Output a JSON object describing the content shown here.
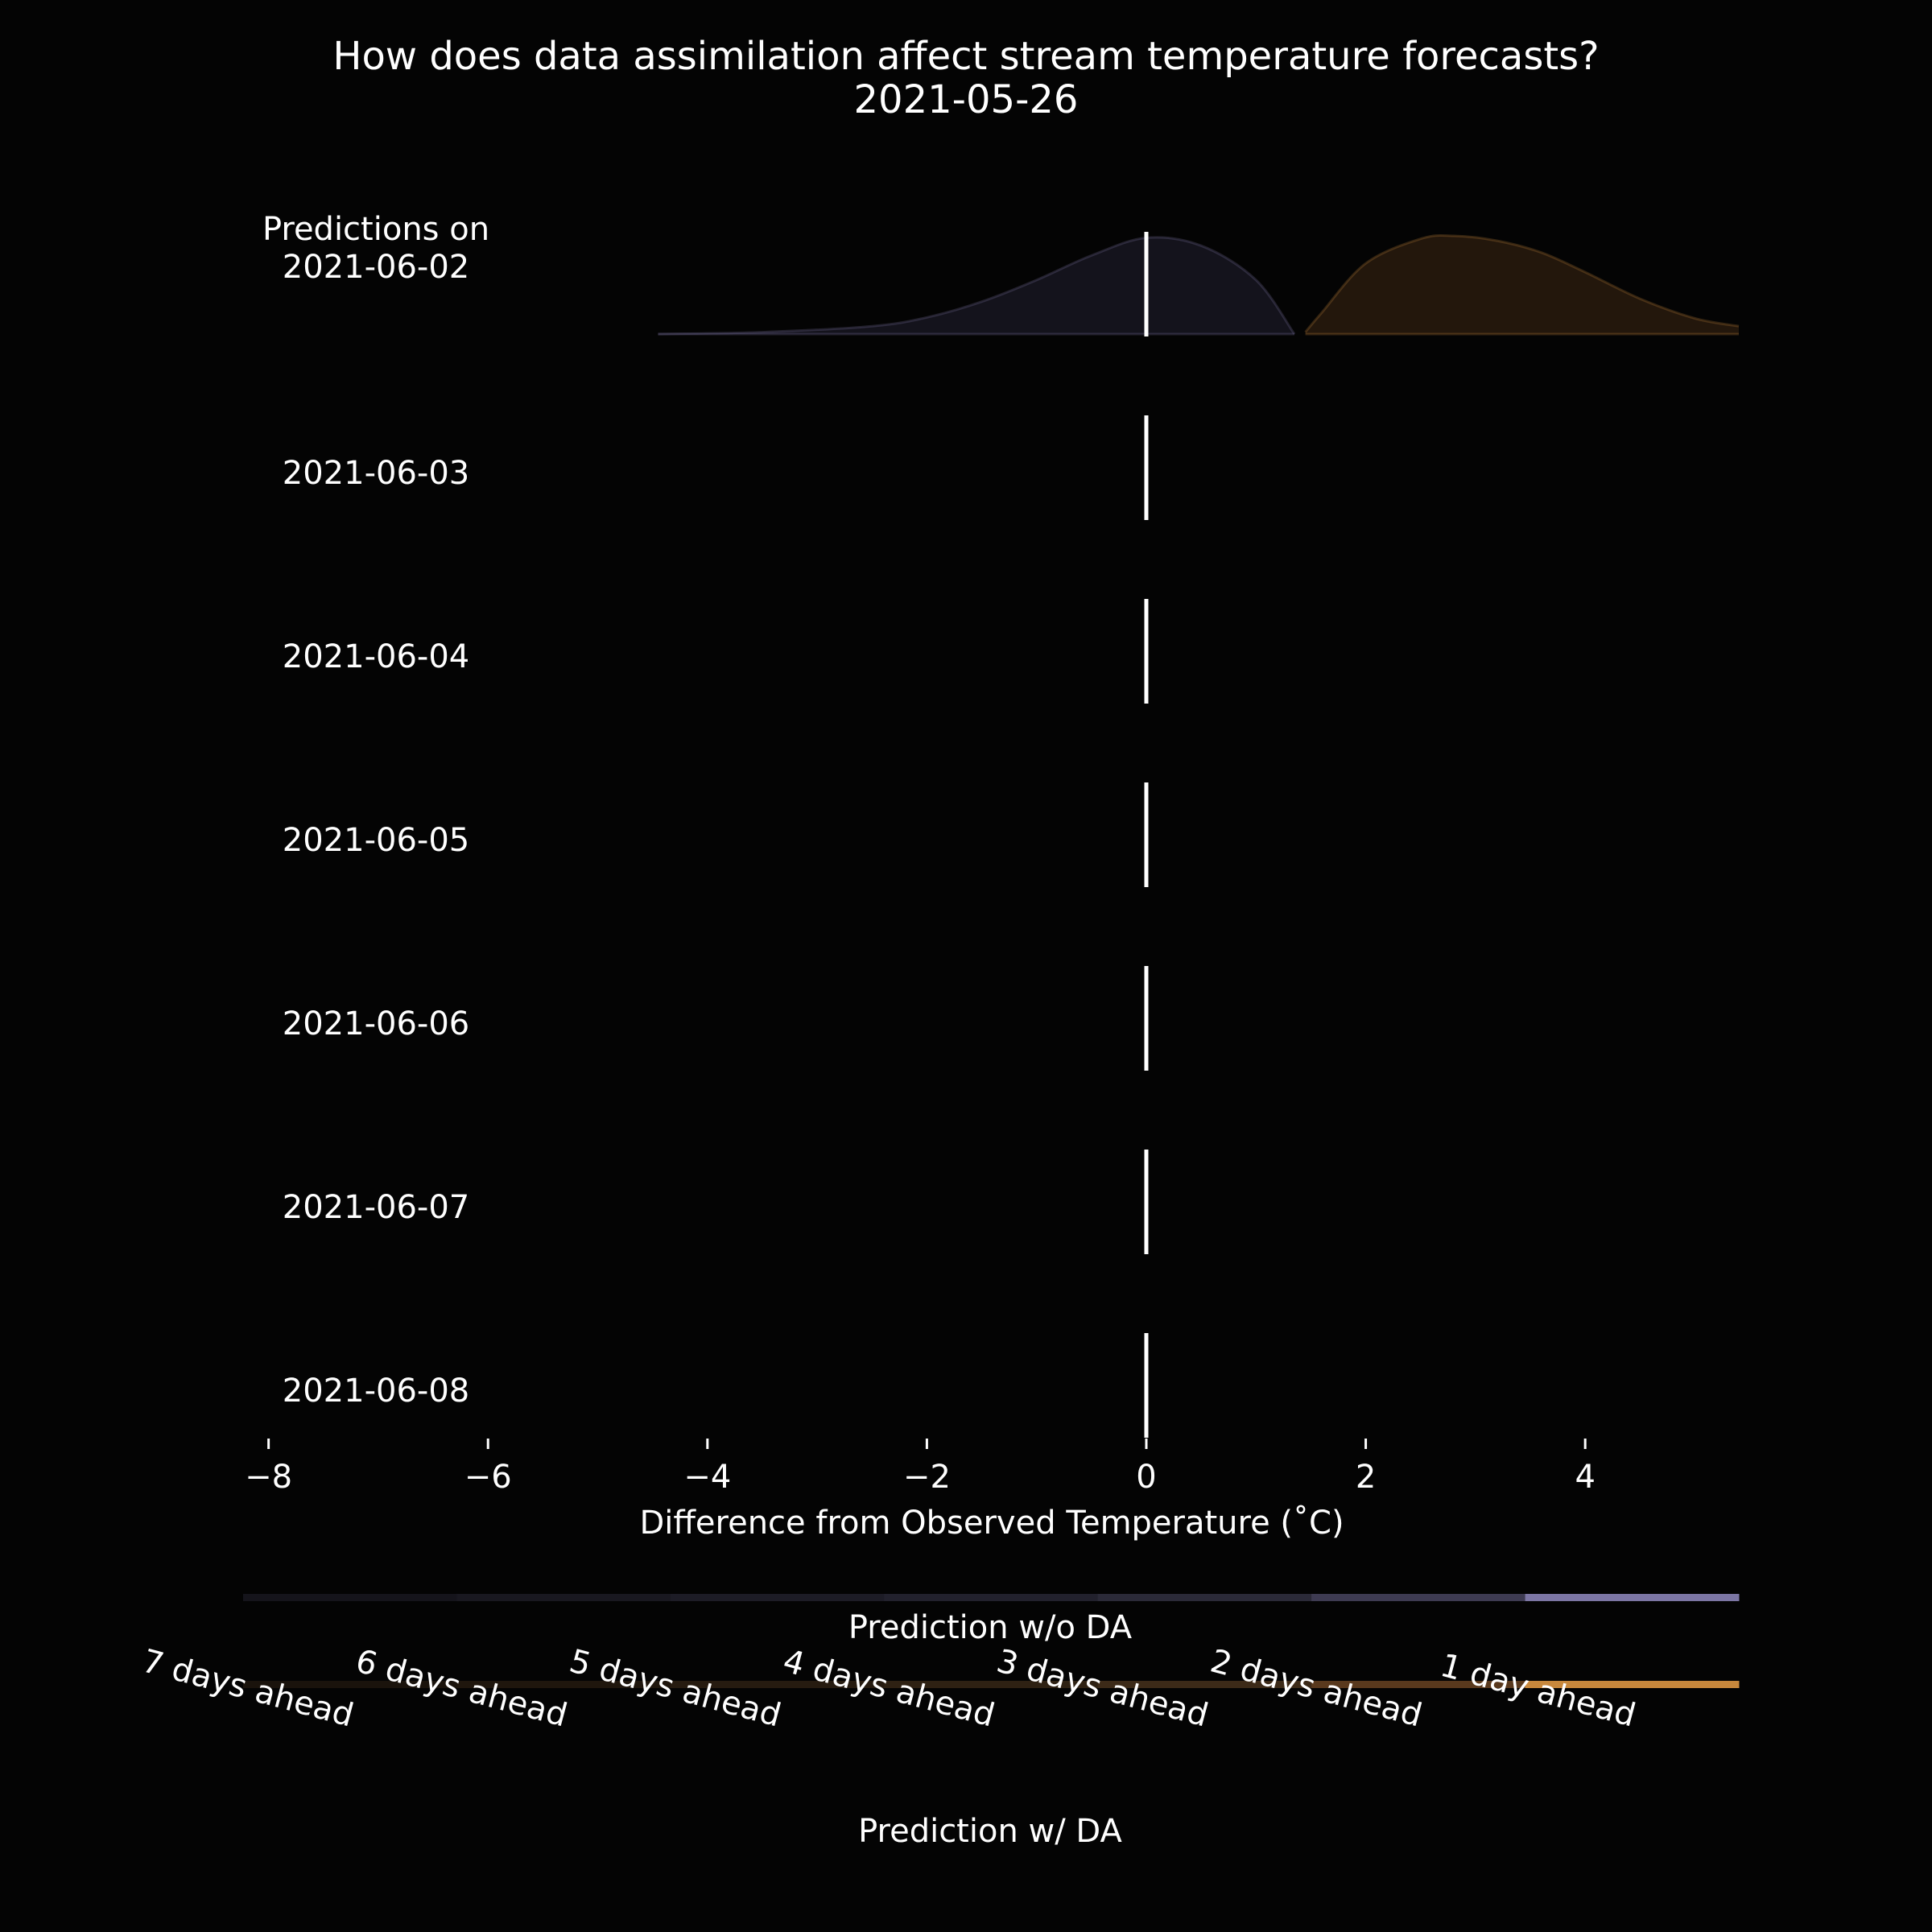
{
  "chart_data": {
    "type": "ridgeline",
    "title": "How does data assimilation affect stream temperature forecasts?",
    "subtitle": "2021-05-26",
    "xlabel": "Difference from Observed Temperature ($^\\circ$C)",
    "xlabel_display": "Difference from Observed Temperature (˚C)",
    "xlim": [
      -8.1,
      5.4
    ],
    "xticks": [
      -8,
      -6,
      -4,
      -2,
      0,
      2,
      4
    ],
    "xtick_labels": [
      "−8",
      "−6",
      "−4",
      "−2",
      "0",
      "2",
      "4"
    ],
    "reference_line_x": 0,
    "row_header": "Predictions on",
    "rows": [
      "2021-06-02",
      "2021-06-03",
      "2021-06-04",
      "2021-06-05",
      "2021-06-06",
      "2021-06-07",
      "2021-06-08"
    ],
    "series": [
      {
        "name": "Prediction w/o DA",
        "row": "2021-06-02",
        "color": "#8079a8",
        "fill_color": "#14131c",
        "x": [
          -4.45,
          -3.5,
          -2.5,
          -2.0,
          -1.5,
          -1.0,
          -0.5,
          0.0,
          0.5,
          1.0,
          1.35
        ],
        "density": [
          0.0,
          0.02,
          0.08,
          0.17,
          0.33,
          0.55,
          0.8,
          0.98,
          0.9,
          0.55,
          0.0
        ]
      },
      {
        "name": "Prediction w/ DA",
        "row": "2021-06-02",
        "color": "#c8883c",
        "fill_color": "#23170c",
        "x": [
          1.45,
          1.6,
          2.0,
          2.5,
          2.8,
          3.2,
          3.6,
          4.0,
          4.5,
          5.0,
          5.4
        ],
        "density": [
          0.02,
          0.22,
          0.72,
          0.97,
          1.0,
          0.95,
          0.83,
          0.63,
          0.36,
          0.16,
          0.08
        ]
      }
    ],
    "legend": {
      "horizons": [
        "7 days ahead",
        "6 days ahead",
        "5 days ahead",
        "4 days ahead",
        "3 days ahead",
        "2 days ahead",
        "1 day ahead"
      ],
      "no_da": {
        "label": "Prediction w/o DA",
        "colors": [
          "#15141b",
          "#191820",
          "#1d1c26",
          "#22212d",
          "#2b2a38",
          "#3e3b52",
          "#7c76a4"
        ]
      },
      "da": {
        "label": "Prediction w/ DA",
        "colors": [
          "#1a130c",
          "#1f160d",
          "#261b10",
          "#2e2113",
          "#3c2a18",
          "#59391d",
          "#c8883c"
        ]
      }
    }
  }
}
